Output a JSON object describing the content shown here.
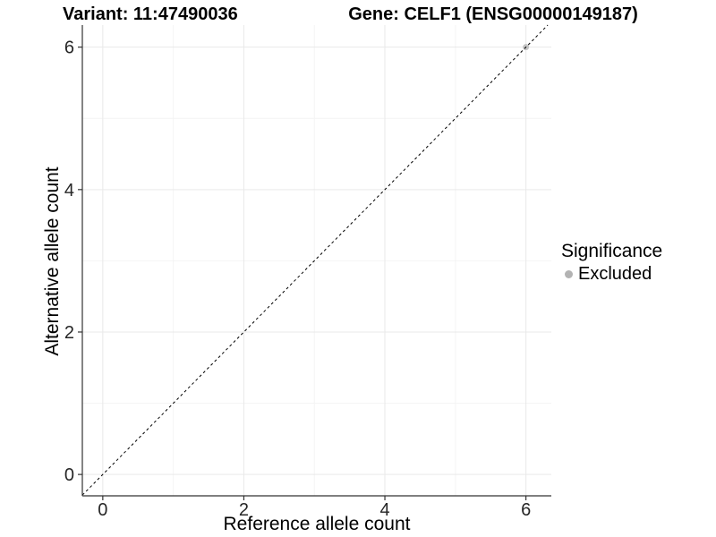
{
  "chart_data": {
    "type": "scatter",
    "title_left": "Variant: 11:47490036",
    "title_right": "Gene: CELF1 (ENSG00000149187)",
    "xlabel": "Reference allele count",
    "ylabel": "Alternative allele count",
    "xlim": [
      -0.29,
      6.36
    ],
    "ylim": [
      -0.3,
      6.31
    ],
    "xticks": [
      0,
      2,
      4,
      6
    ],
    "yticks": [
      0,
      2,
      4,
      6
    ],
    "minor_xticks": [
      1,
      3,
      5
    ],
    "minor_yticks": [
      1,
      3,
      5
    ],
    "grid": true,
    "identity_line": {
      "style": "dashed",
      "equation": "y = x"
    },
    "points": [
      {
        "x": 6,
        "y": 6,
        "significance": "Excluded"
      }
    ],
    "legend": {
      "title": "Significance",
      "position": "right",
      "items": [
        {
          "label": "Excluded",
          "marker": "circle"
        }
      ]
    }
  },
  "colors": {
    "background": "#ffffff",
    "grid_major": "#e9e9e9",
    "grid_minor": "#f4f4f4",
    "axis_line": "#333333",
    "tick_mark": "#333333",
    "tick_label": "#262626",
    "text": "#000000",
    "identity_line": "#000000",
    "point_excluded": "#c4c4c4",
    "legend_point": "#b3b3b3"
  }
}
